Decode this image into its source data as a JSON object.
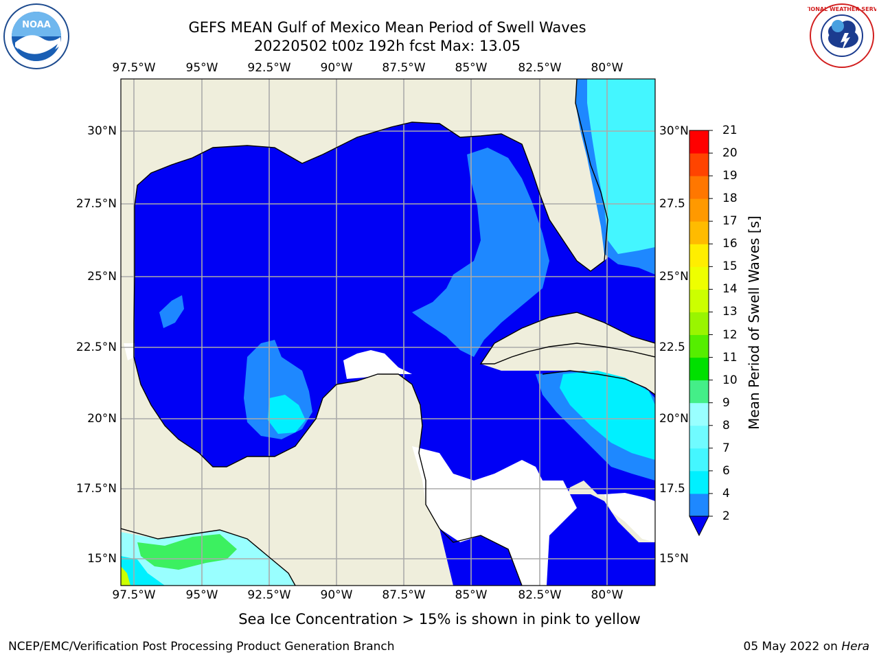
{
  "title": {
    "line1": "GEFS MEAN Gulf of Mexico Mean Period of Swell Waves",
    "line2": "20220502 t00z 192h fcst   Max: 13.05"
  },
  "map": {
    "lon_range": [
      -98,
      -78
    ],
    "lat_range": [
      14,
      32
    ],
    "lon_ticks": [
      "97.5°W",
      "95°W",
      "92.5°W",
      "90°W",
      "87.5°W",
      "85°W",
      "82.5°W",
      "80°W"
    ],
    "lat_ticks_left": [
      "30°N",
      "27.5°N",
      "25°N",
      "22.5°N",
      "20°N",
      "17.5°N",
      "15°N"
    ],
    "lat_ticks_right": [
      "30°N",
      "27.5",
      "25°N",
      "22.5",
      "20°N",
      "17.5",
      "15°N"
    ],
    "colors": {
      "land": "#efeedc",
      "missing": "#ffffff",
      "deep_blue": "#0000f5",
      "mid_blue": "#1e88ff",
      "cyan": "#00f0ff",
      "light_cyan": "#44f6ff",
      "pale_cyan": "#99ffff",
      "green": "#3cf060",
      "bright_green": "#00e000",
      "yellow_green": "#ccff00"
    }
  },
  "colorbar": {
    "label": "Mean Period of Swell Waves [s]",
    "ticks": [
      "2",
      "4",
      "6",
      "7",
      "8",
      "9",
      "10",
      "11",
      "12",
      "13",
      "14",
      "15",
      "16",
      "17",
      "18",
      "19",
      "20",
      "21"
    ],
    "colors": [
      "#1e88ff",
      "#00f0ff",
      "#44f6ff",
      "#70fbff",
      "#99ffff",
      "#44ee88",
      "#00e000",
      "#55ee00",
      "#99f500",
      "#ccff00",
      "#eeff00",
      "#ffee00",
      "#ffbb00",
      "#ff9900",
      "#ff7700",
      "#ff4400",
      "#ff0000"
    ],
    "extend_color": "#0000f5"
  },
  "footer": {
    "note": "Sea Ice Concentration > 15% is shown in pink to yellow",
    "credit": "NCEP/EMC/Verification Post Processing Product Generation Branch",
    "date": "05 May 2022 on",
    "host": "Hera"
  },
  "logos": {
    "left": "noaa-logo",
    "left_text": "NOAA",
    "right": "national-weather-service-logo",
    "right_text": "NATIONAL WEATHER SERVICE"
  }
}
